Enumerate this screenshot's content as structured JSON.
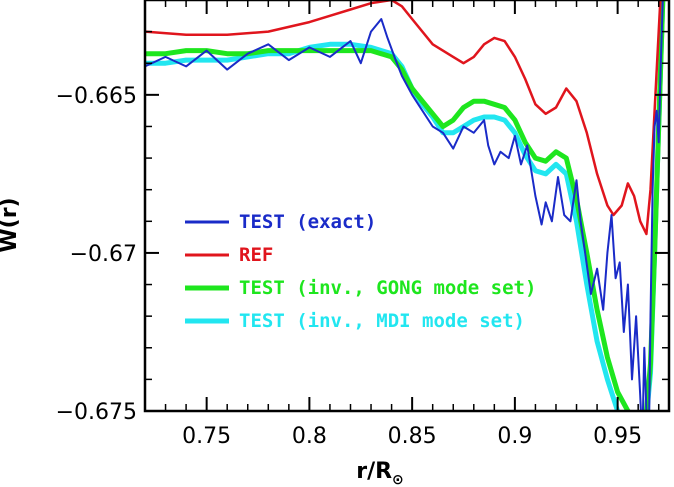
{
  "chart_data": {
    "type": "line",
    "xlabel": "r/R",
    "xlabel_sub": "⊙",
    "ylabel": "W(r)",
    "xlim": [
      0.72,
      0.975
    ],
    "ylim": [
      -0.675,
      -0.662
    ],
    "xticks": [
      0.75,
      0.8,
      0.85,
      0.9,
      0.95
    ],
    "xtick_labels": [
      "0.75",
      "0.8",
      "0.85",
      "0.9",
      "0.95"
    ],
    "yticks": [
      -0.665,
      -0.67,
      -0.675
    ],
    "ytick_labels": [
      "−0.665",
      "−0.67",
      "−0.675"
    ],
    "legend_position": "center-left",
    "grid": false,
    "series": [
      {
        "name": "TEST (exact)",
        "color": "#1a2bc8",
        "width": 2,
        "x": [
          0.72,
          0.73,
          0.74,
          0.75,
          0.76,
          0.77,
          0.78,
          0.79,
          0.8,
          0.81,
          0.82,
          0.825,
          0.83,
          0.835,
          0.838,
          0.842,
          0.845,
          0.85,
          0.855,
          0.86,
          0.865,
          0.87,
          0.875,
          0.88,
          0.885,
          0.887,
          0.89,
          0.893,
          0.897,
          0.9,
          0.903,
          0.906,
          0.91,
          0.913,
          0.915,
          0.918,
          0.921,
          0.924,
          0.927,
          0.93,
          0.932,
          0.934,
          0.937,
          0.94,
          0.943,
          0.945,
          0.947,
          0.949,
          0.951,
          0.953,
          0.955,
          0.957,
          0.959,
          0.961,
          0.962,
          0.963,
          0.964,
          0.965,
          0.966,
          0.967,
          0.968,
          0.969,
          0.97,
          0.971,
          0.972,
          0.973,
          0.974
        ],
        "y": [
          -0.6641,
          -0.6638,
          -0.6641,
          -0.6636,
          -0.6642,
          -0.6637,
          -0.6634,
          -0.6639,
          -0.6635,
          -0.6638,
          -0.6633,
          -0.664,
          -0.663,
          -0.6626,
          -0.6632,
          -0.6639,
          -0.6644,
          -0.665,
          -0.6655,
          -0.666,
          -0.6662,
          -0.6667,
          -0.666,
          -0.6662,
          -0.6658,
          -0.6666,
          -0.6672,
          -0.6668,
          -0.667,
          -0.6663,
          -0.6672,
          -0.6666,
          -0.6682,
          -0.6691,
          -0.6684,
          -0.669,
          -0.6676,
          -0.6688,
          -0.669,
          -0.6677,
          -0.669,
          -0.6699,
          -0.6713,
          -0.6705,
          -0.6718,
          -0.67,
          -0.6688,
          -0.6708,
          -0.6703,
          -0.6725,
          -0.671,
          -0.674,
          -0.672,
          -0.6745,
          -0.676,
          -0.673,
          -0.675,
          -0.6768,
          -0.672,
          -0.668,
          -0.666,
          -0.6655,
          -0.6665,
          -0.664,
          -0.662,
          -0.66,
          -0.659
        ]
      },
      {
        "name": "REF",
        "color": "#e0151d",
        "width": 2.5,
        "x": [
          0.72,
          0.74,
          0.76,
          0.78,
          0.8,
          0.81,
          0.82,
          0.83,
          0.84,
          0.845,
          0.85,
          0.86,
          0.87,
          0.875,
          0.88,
          0.885,
          0.89,
          0.895,
          0.9,
          0.905,
          0.91,
          0.915,
          0.92,
          0.925,
          0.93,
          0.935,
          0.94,
          0.945,
          0.948,
          0.952,
          0.955,
          0.958,
          0.961,
          0.964,
          0.966,
          0.968,
          0.97,
          0.972,
          0.974
        ],
        "y": [
          -0.663,
          -0.6631,
          -0.6631,
          -0.663,
          -0.6627,
          -0.6625,
          -0.6623,
          -0.6621,
          -0.662,
          -0.6622,
          -0.6626,
          -0.6634,
          -0.6638,
          -0.664,
          -0.6638,
          -0.6634,
          -0.6632,
          -0.6633,
          -0.6638,
          -0.6645,
          -0.6653,
          -0.6656,
          -0.6654,
          -0.6648,
          -0.6652,
          -0.6662,
          -0.6675,
          -0.6685,
          -0.6688,
          -0.6685,
          -0.6678,
          -0.6682,
          -0.669,
          -0.6694,
          -0.668,
          -0.6655,
          -0.663,
          -0.6605,
          -0.659
        ]
      },
      {
        "name": "TEST (inv., GONG mode set)",
        "color": "#1ee61e",
        "width": 5,
        "x": [
          0.72,
          0.73,
          0.74,
          0.75,
          0.76,
          0.77,
          0.78,
          0.79,
          0.8,
          0.81,
          0.82,
          0.83,
          0.84,
          0.845,
          0.85,
          0.855,
          0.86,
          0.865,
          0.87,
          0.875,
          0.88,
          0.885,
          0.89,
          0.895,
          0.9,
          0.905,
          0.91,
          0.915,
          0.92,
          0.925,
          0.93,
          0.935,
          0.94,
          0.945,
          0.95,
          0.955,
          0.958,
          0.961,
          0.964,
          0.966,
          0.968,
          0.97,
          0.972,
          0.974
        ],
        "y": [
          -0.6637,
          -0.6637,
          -0.6636,
          -0.6636,
          -0.6637,
          -0.6637,
          -0.6636,
          -0.6636,
          -0.6636,
          -0.6636,
          -0.6636,
          -0.6636,
          -0.6638,
          -0.6642,
          -0.6648,
          -0.6652,
          -0.6656,
          -0.666,
          -0.6658,
          -0.6654,
          -0.6652,
          -0.6652,
          -0.6653,
          -0.6654,
          -0.6658,
          -0.6665,
          -0.667,
          -0.6671,
          -0.6668,
          -0.667,
          -0.6683,
          -0.67,
          -0.6718,
          -0.6733,
          -0.6744,
          -0.675,
          -0.6752,
          -0.6752,
          -0.675,
          -0.6735,
          -0.67,
          -0.666,
          -0.662,
          -0.659
        ]
      },
      {
        "name": "TEST (inv., MDI mode set)",
        "color": "#22e6f0",
        "width": 5,
        "x": [
          0.72,
          0.73,
          0.74,
          0.75,
          0.76,
          0.77,
          0.78,
          0.79,
          0.8,
          0.81,
          0.82,
          0.83,
          0.84,
          0.845,
          0.85,
          0.855,
          0.86,
          0.865,
          0.87,
          0.875,
          0.88,
          0.885,
          0.89,
          0.895,
          0.9,
          0.905,
          0.91,
          0.915,
          0.92,
          0.925,
          0.93,
          0.935,
          0.94,
          0.945,
          0.95,
          0.955,
          0.958,
          0.961,
          0.964,
          0.966,
          0.968,
          0.97,
          0.972,
          0.974
        ],
        "y": [
          -0.664,
          -0.664,
          -0.6639,
          -0.6639,
          -0.6639,
          -0.6638,
          -0.6637,
          -0.6637,
          -0.6635,
          -0.6634,
          -0.6634,
          -0.6635,
          -0.6637,
          -0.6641,
          -0.6648,
          -0.6653,
          -0.6657,
          -0.6662,
          -0.6662,
          -0.666,
          -0.6658,
          -0.6657,
          -0.6657,
          -0.6658,
          -0.6662,
          -0.6669,
          -0.6674,
          -0.6675,
          -0.6672,
          -0.6675,
          -0.669,
          -0.671,
          -0.6728,
          -0.674,
          -0.675,
          -0.6753,
          -0.6754,
          -0.6754,
          -0.6752,
          -0.6738,
          -0.67,
          -0.666,
          -0.662,
          -0.659
        ]
      }
    ]
  },
  "colors": {
    "background": "#ffffff",
    "axes": "#000000"
  }
}
